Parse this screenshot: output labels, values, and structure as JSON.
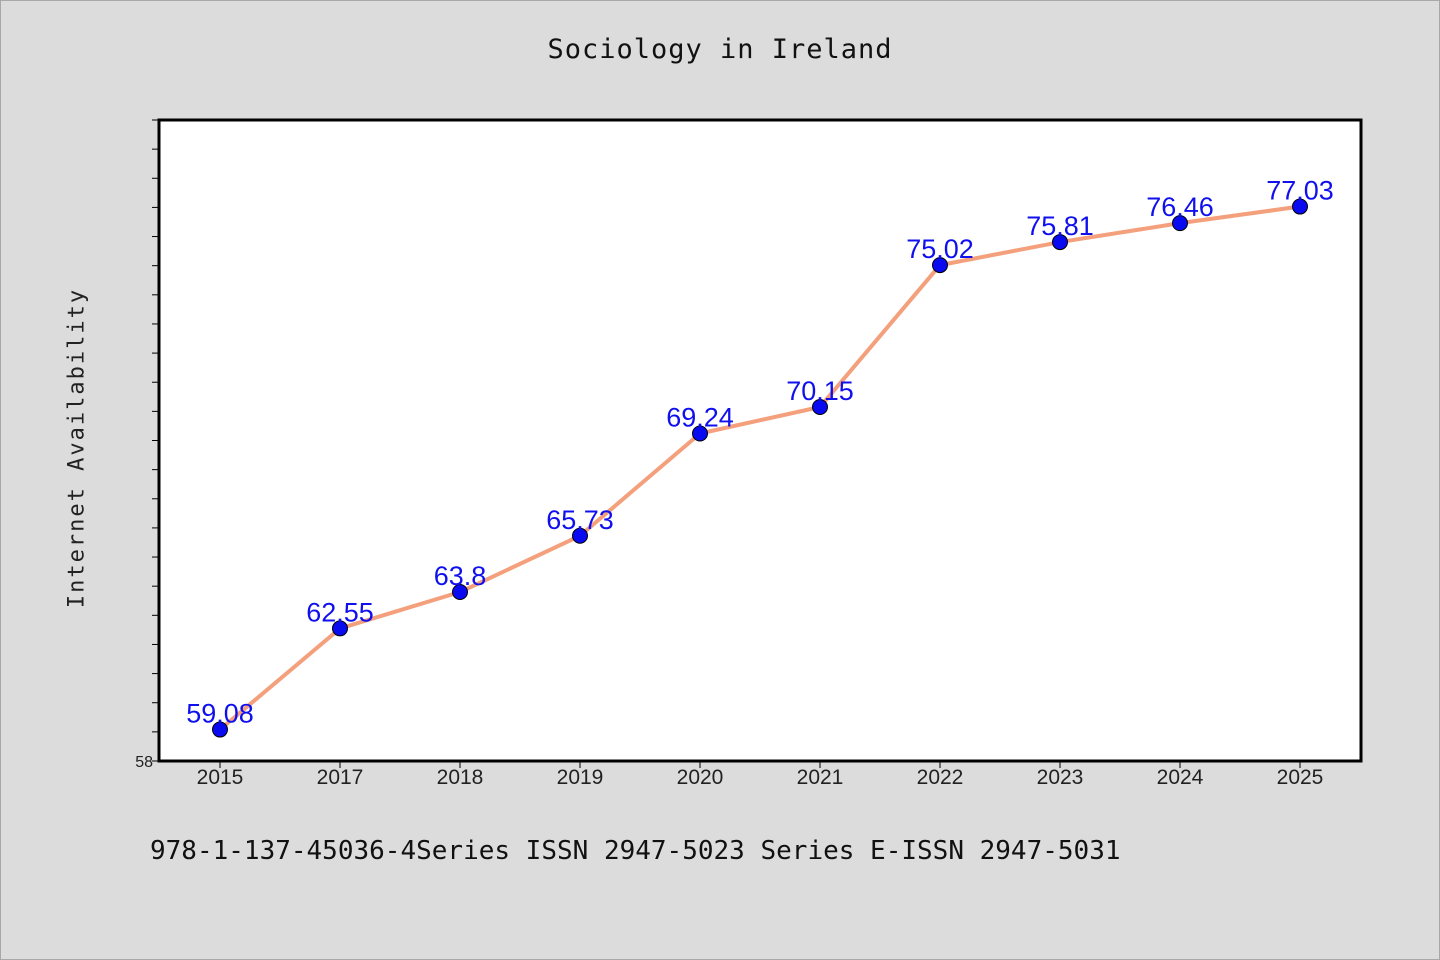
{
  "chart_data": {
    "type": "line",
    "title": "Sociology in Ireland",
    "xlabel": "",
    "ylabel": "Internet Availability",
    "x": [
      "2015",
      "2017",
      "2018",
      "2019",
      "2020",
      "2021",
      "2022",
      "2023",
      "2024",
      "2025"
    ],
    "series": [
      {
        "values": [
          59.08,
          62.55,
          63.8,
          65.73,
          69.24,
          70.15,
          75.02,
          75.81,
          76.46,
          77.03
        ],
        "labels": [
          "59.08",
          "62.55",
          "63.8",
          "65.73",
          "69.24",
          "70.15",
          "75.02",
          "75.81",
          "76.46",
          "77.03"
        ]
      }
    ],
    "ylim": [
      58,
      80
    ],
    "y_tick_labels_shown": [
      "58"
    ],
    "grid": false,
    "legend": "none",
    "line_color": "#f4a07c",
    "marker_color": "#0a0af0",
    "label_color": "#1010ee"
  },
  "footer": "978-1-137-45036-4Series ISSN 2947-5023 Series E-ISSN 2947-5031"
}
